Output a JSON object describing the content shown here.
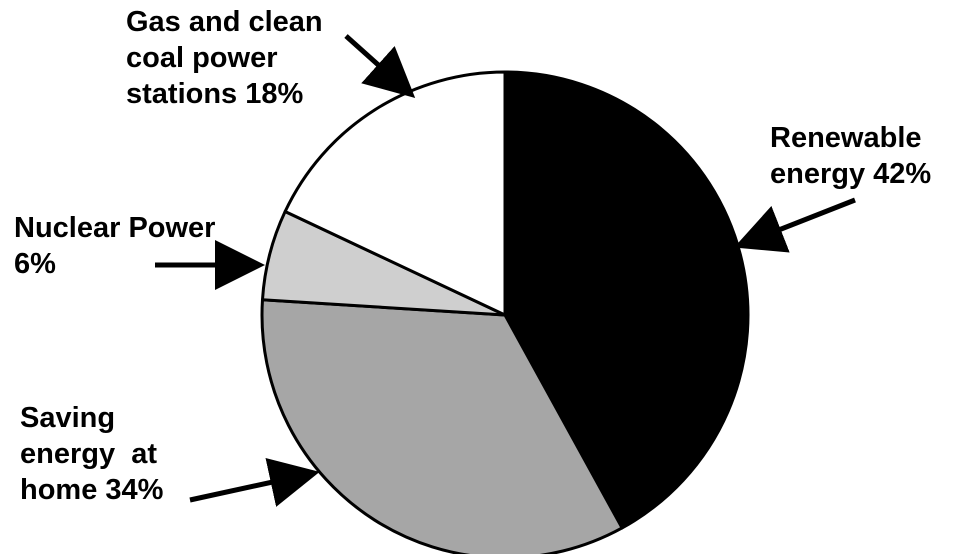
{
  "chart_data": {
    "type": "pie",
    "title": "",
    "slices": [
      {
        "label": "Renewable\nenergy 42%",
        "value": 42,
        "color": "#000000"
      },
      {
        "label": "Saving\nenergy  at\nhome 34%",
        "value": 34,
        "color": "#a6a6a6"
      },
      {
        "label": "Nuclear Power\n6%",
        "value": 6,
        "color": "#cfcfcf"
      },
      {
        "label": "Gas and clean\ncoal power\nstations 18%",
        "value": 18,
        "color": "#ffffff"
      }
    ],
    "legend": "none"
  }
}
